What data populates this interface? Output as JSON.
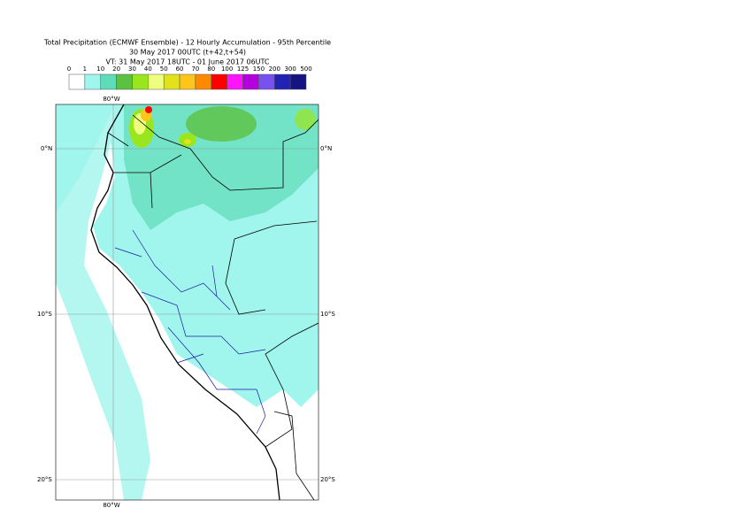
{
  "title": [
    "Total Precipitation (ECMWF Ensemble) - 12 Hourly Accumulation - 95th Percentile",
    "30 May 2017 00UTC (t+42,t+54)",
    "VT: 31 May 2017 18UTC - 01 June 2017 06UTC"
  ],
  "legend": {
    "labels": [
      0,
      1,
      10,
      20,
      30,
      40,
      50,
      60,
      70,
      80,
      100,
      125,
      150,
      200,
      300,
      500
    ],
    "colors": [
      "#ffffff",
      "#a0f5ec",
      "#5fdcb8",
      "#5cc040",
      "#9ae61e",
      "#eeff80",
      "#e2e21c",
      "#ffc61a",
      "#ff8a00",
      "#ff0000",
      "#ff14ff",
      "#b400dc",
      "#7850f0",
      "#2222b4",
      "#141484",
      "#0a0a50"
    ]
  },
  "axes": {
    "lat_labels": [
      "0°N",
      "10°S",
      "20°S"
    ],
    "lon_labels": [
      "80°W"
    ]
  }
}
